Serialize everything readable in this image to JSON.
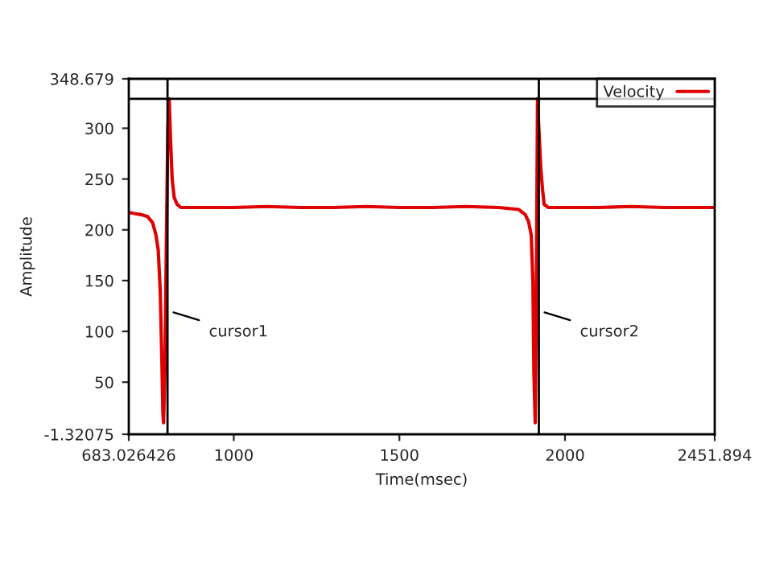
{
  "chart_data": {
    "type": "line",
    "xlabel": "Time(msec)",
    "ylabel": "Amplitude",
    "xlim": [
      683.026426,
      2451.894
    ],
    "ylim": [
      -1.32075,
      348.679
    ],
    "xticks": [
      683.026426,
      1000,
      1500,
      2000,
      2451.894
    ],
    "yticks": [
      -1.32075,
      50,
      100,
      150,
      200,
      250,
      300,
      348.679
    ],
    "legend": "top right",
    "grid": false,
    "marker": "none",
    "line_style": "solid",
    "series": [
      {
        "name": "Velocity",
        "color": "#e00000",
        "x": [
          684,
          700,
          720,
          740,
          755,
          765,
          772,
          778,
          783,
          786,
          788,
          792,
          797,
          801,
          805,
          809,
          814,
          820,
          829,
          840,
          900,
          1000,
          1100,
          1200,
          1300,
          1400,
          1500,
          1600,
          1700,
          1800,
          1860,
          1880,
          1890,
          1898,
          1903,
          1906,
          1910,
          1913,
          1917,
          1921,
          1927,
          1932,
          1937,
          1950,
          2000,
          2100,
          2200,
          2300,
          2400,
          2451
        ],
        "values": [
          217,
          216,
          215,
          213,
          207,
          195,
          180,
          140,
          70,
          20,
          10,
          60,
          200,
          300,
          329,
          290,
          250,
          232,
          225,
          222,
          222,
          222,
          223,
          222,
          222,
          223,
          222,
          222,
          223,
          222,
          220,
          215,
          208,
          195,
          150,
          60,
          10,
          120,
          329,
          300,
          260,
          240,
          225,
          222,
          222,
          222,
          223,
          222,
          222,
          222
        ]
      }
    ],
    "ref_lines": [
      {
        "axis": "x",
        "value": 800,
        "color": "#000000"
      },
      {
        "axis": "x",
        "value": 1921,
        "color": "#000000"
      },
      {
        "axis": "y",
        "value": 329,
        "color": "#000000"
      }
    ],
    "annotations": [
      {
        "text": "cursor1",
        "x": 805,
        "y": 120
      },
      {
        "text": "cursor2",
        "x": 1925,
        "y": 120
      }
    ]
  }
}
